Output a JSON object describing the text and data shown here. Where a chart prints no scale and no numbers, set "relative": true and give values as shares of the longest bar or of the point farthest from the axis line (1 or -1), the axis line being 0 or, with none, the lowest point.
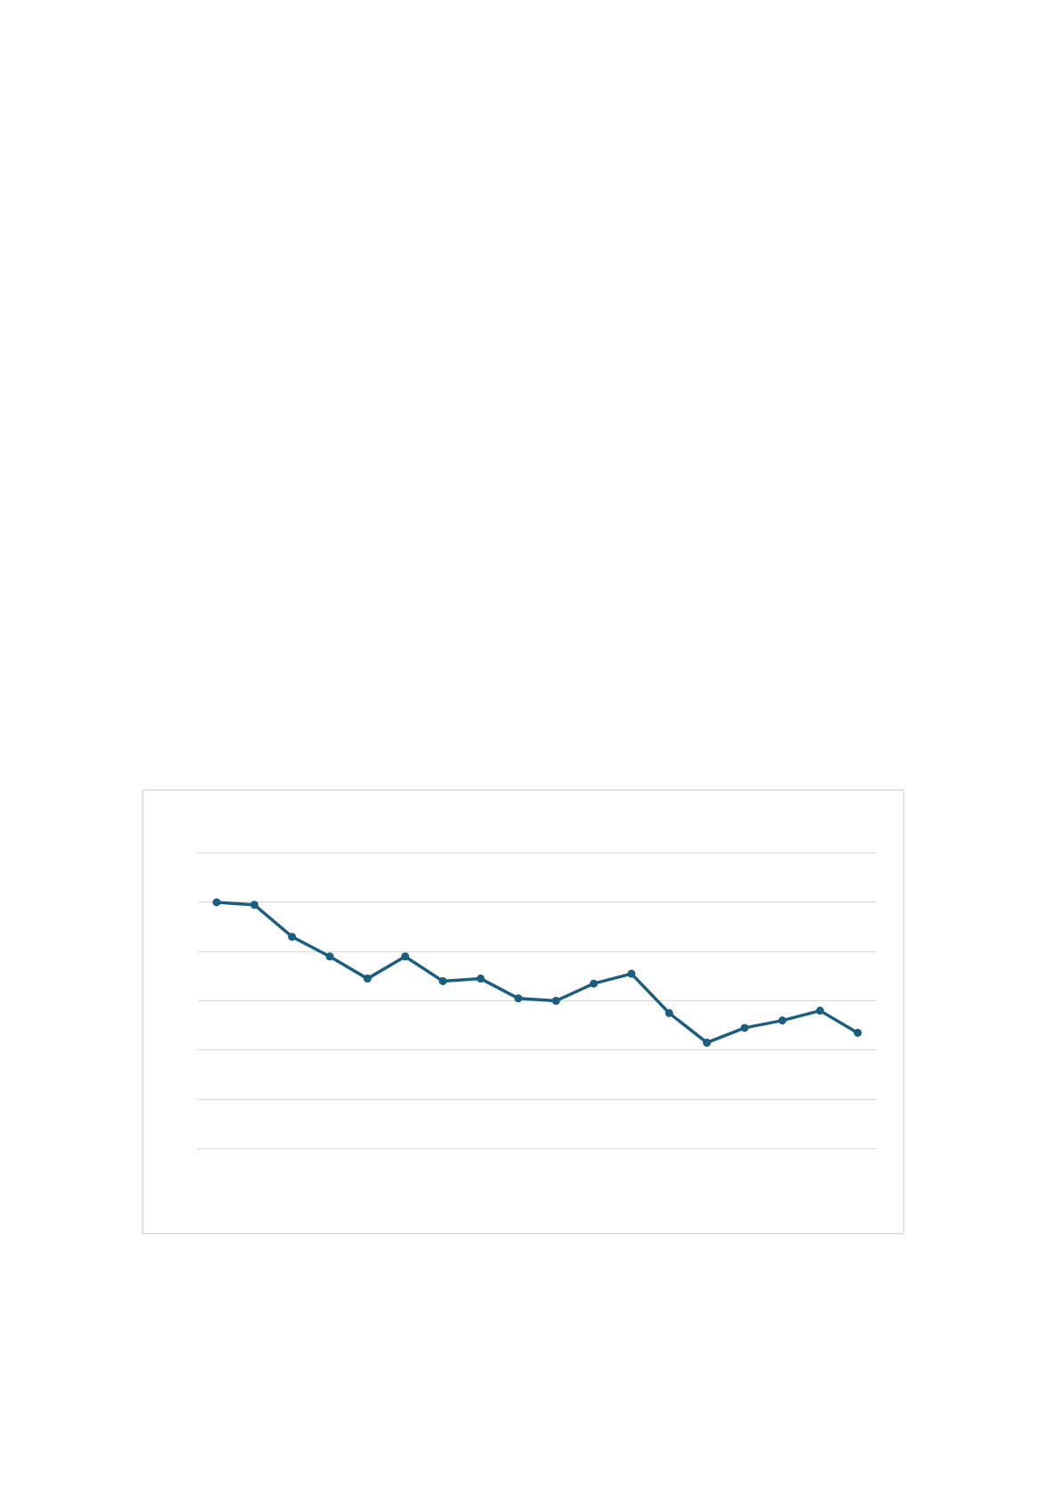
{
  "chart_data": {
    "type": "line",
    "relative": true,
    "categories": [
      null,
      null,
      null,
      null,
      null,
      null,
      null,
      null,
      null,
      null,
      null,
      null,
      null,
      null,
      null,
      null,
      null,
      null
    ],
    "series": [
      {
        "color": "#1b5e80",
        "values": [
          1.0,
          0.99,
          0.86,
          0.78,
          0.69,
          0.78,
          0.68,
          0.69,
          0.61,
          0.6,
          0.67,
          0.71,
          0.55,
          0.43,
          0.49,
          0.52,
          0.56,
          0.47
        ]
      }
    ],
    "marker": "circle",
    "line_style": "solid",
    "grid": "y"
  }
}
